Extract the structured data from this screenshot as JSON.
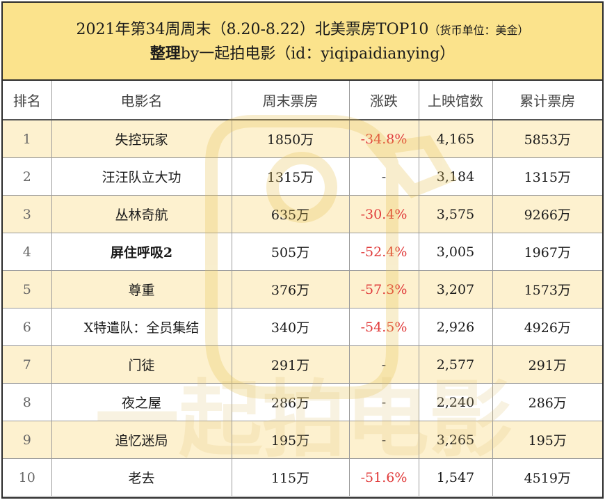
{
  "header": {
    "title": "2021年第34周周末（8.20-8.22）北美票房TOP10",
    "unit": "（货币单位：美金）",
    "subtitle_prefix": "整理",
    "subtitle_rest": "by一起拍电影（id：yiqipaidianying）"
  },
  "columns": [
    "排名",
    "电影名",
    "周末票房",
    "涨跌",
    "上映馆数",
    "累计票房"
  ],
  "rows": [
    {
      "rank": "1",
      "title": "失控玩家",
      "weekend": "1850万",
      "change": "-34.8%",
      "theaters": "4,165",
      "total": "5853万"
    },
    {
      "rank": "2",
      "title": "汪汪队立大功",
      "weekend": "1315万",
      "change": "-",
      "theaters": "3,184",
      "total": "1315万"
    },
    {
      "rank": "3",
      "title": "丛林奇航",
      "weekend": "635万",
      "change": "-30.4%",
      "theaters": "3,575",
      "total": "9266万"
    },
    {
      "rank": "4",
      "title": "屏住呼吸2",
      "weekend": "505万",
      "change": "-52.4%",
      "theaters": "3,005",
      "total": "1967万"
    },
    {
      "rank": "5",
      "title": "尊重",
      "weekend": "376万",
      "change": "-57.3%",
      "theaters": "3,207",
      "total": "1573万"
    },
    {
      "rank": "6",
      "title": "X特遣队：全员集结",
      "weekend": "340万",
      "change": "-54.5%",
      "theaters": "2,926",
      "total": "4926万"
    },
    {
      "rank": "7",
      "title": "门徒",
      "weekend": "291万",
      "change": "-",
      "theaters": "2,577",
      "total": "291万"
    },
    {
      "rank": "8",
      "title": "夜之屋",
      "weekend": "286万",
      "change": "-",
      "theaters": "2,240",
      "total": "286万"
    },
    {
      "rank": "9",
      "title": "追忆迷局",
      "weekend": "195万",
      "change": "-",
      "theaters": "3,265",
      "total": "195万"
    },
    {
      "rank": "10",
      "title": "老去",
      "weekend": "115万",
      "change": "-51.6%",
      "theaters": "1,547",
      "total": "4519万"
    }
  ],
  "watermark": {
    "text": "一起拍电影",
    "color": "#f3d98a"
  },
  "colors": {
    "header_bg": "#fbe38c",
    "odd_row_bg": "#fdf1cf",
    "negative": "#e03a3a"
  }
}
